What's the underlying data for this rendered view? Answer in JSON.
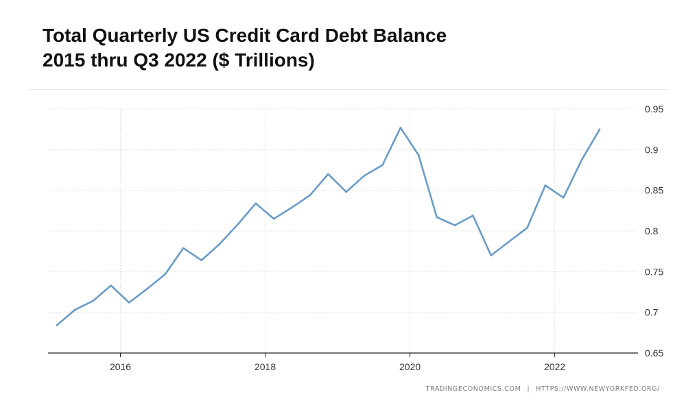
{
  "header": {
    "title_line1": "Total Quarterly US Credit Card Debt Balance",
    "title_line2": "2015 thru Q3 2022 ($ Trillions)"
  },
  "footer": {
    "source_left": "TRADINGECONOMICS.COM",
    "separator": "|",
    "source_right": "HTTPS://WWW.NEWYORKFED.ORG/"
  },
  "colors": {
    "line": "#6a9bc7",
    "grid": "#d8d8d8",
    "axis": "#222222",
    "tick_text": "#333333"
  },
  "chart_data": {
    "type": "line",
    "title": "Total Quarterly US Credit Card Debt Balance 2015 thru Q3 2022 ($ Trillions)",
    "xlabel": "",
    "ylabel": "",
    "xlim": [
      2015.0,
      2023.15
    ],
    "ylim": [
      0.65,
      0.95
    ],
    "x_ticks": [
      2016,
      2018,
      2020,
      2022
    ],
    "y_ticks": [
      0.65,
      0.7,
      0.75,
      0.8,
      0.85,
      0.9,
      0.95
    ],
    "y_tick_labels": [
      "0.65",
      "0.7",
      "0.75",
      "0.8",
      "0.85",
      "0.9",
      "0.95"
    ],
    "y_axis_side": "right",
    "grid": "dotted",
    "legend": "none",
    "series": [
      {
        "x": [
          2015.12,
          2015.37,
          2015.62,
          2015.87,
          2016.12,
          2016.37,
          2016.62,
          2016.87,
          2017.12,
          2017.37,
          2017.62,
          2017.87,
          2018.12,
          2018.37,
          2018.62,
          2018.87,
          2019.12,
          2019.37,
          2019.62,
          2019.87,
          2020.12,
          2020.37,
          2020.62,
          2020.87,
          2021.12,
          2021.37,
          2021.62,
          2021.87,
          2022.12,
          2022.37,
          2022.62
        ],
        "values": [
          0.684,
          0.703,
          0.714,
          0.733,
          0.712,
          0.729,
          0.747,
          0.779,
          0.764,
          0.784,
          0.808,
          0.834,
          0.815,
          0.829,
          0.844,
          0.87,
          0.848,
          0.868,
          0.881,
          0.927,
          0.893,
          0.817,
          0.807,
          0.819,
          0.77,
          0.787,
          0.804,
          0.856,
          0.841,
          0.887,
          0.925
        ]
      }
    ]
  }
}
